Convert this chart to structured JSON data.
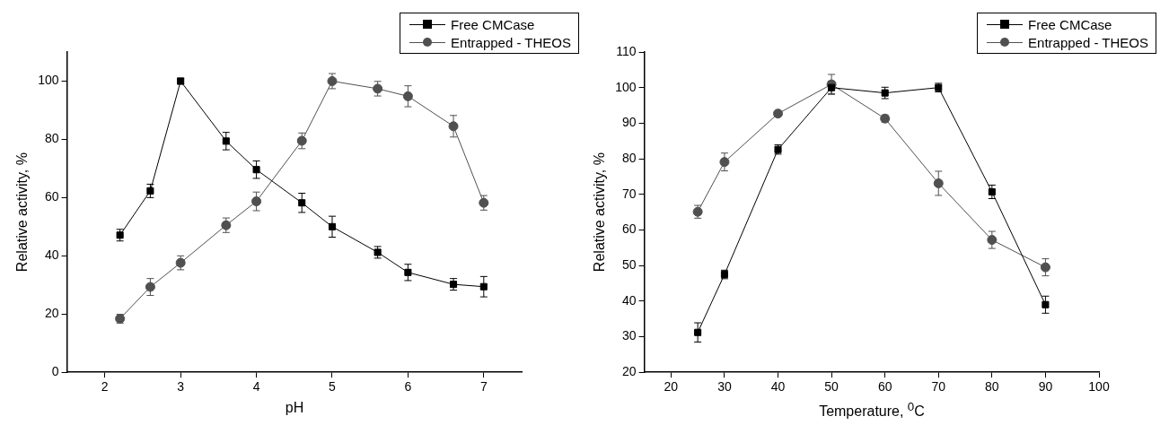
{
  "chart_data": [
    {
      "type": "line",
      "xlabel": "pH",
      "ylabel": "Relative activity, %",
      "x": [
        2.2,
        2.6,
        3,
        3.6,
        4,
        4.6,
        5,
        5.6,
        6,
        6.6,
        7
      ],
      "xlim": [
        1.5,
        7.5
      ],
      "xticks": [
        2,
        3,
        4,
        5,
        6,
        7
      ],
      "ylim": [
        0,
        110
      ],
      "yticks": [
        0,
        20,
        40,
        60,
        80,
        100
      ],
      "grid": false,
      "legend": "top right",
      "series": [
        {
          "name": "Free CMCase",
          "color": "#000000",
          "marker": "square",
          "values": [
            47.1,
            62.3,
            100,
            79.4,
            69.6,
            58.2,
            50,
            41.2,
            34.3,
            30.2,
            29.4
          ],
          "errors": [
            2,
            2.3,
            1,
            3,
            3,
            3.3,
            3.6,
            2,
            2.8,
            2,
            3.5
          ]
        },
        {
          "name": "Entrapped - THEOS",
          "color": "#505050",
          "marker": "circle",
          "values": [
            18.4,
            29.3,
            37.6,
            50.5,
            58.7,
            79.5,
            100,
            97.4,
            94.8,
            84.5,
            58.2
          ],
          "errors": [
            1.5,
            2.9,
            2.4,
            2.5,
            3.2,
            2.7,
            2.6,
            2.5,
            3.6,
            3.7,
            2.5
          ]
        }
      ]
    },
    {
      "type": "line",
      "xlabel": "Temperature, $^{0}$C",
      "ylabel": "Relative activity, %",
      "x": [
        25,
        30,
        40,
        50,
        60,
        70,
        80,
        90
      ],
      "xlim": [
        15,
        100
      ],
      "xticks": [
        20,
        30,
        40,
        50,
        60,
        70,
        80,
        90,
        100
      ],
      "ylim": [
        20,
        110
      ],
      "yticks": [
        20,
        30,
        40,
        50,
        60,
        70,
        80,
        90,
        100,
        110
      ],
      "grid": false,
      "legend": "top right",
      "series": [
        {
          "name": "Free CMCase",
          "color": "#000000",
          "marker": "square",
          "values": [
            31.2,
            47.5,
            82.6,
            100,
            98.5,
            100,
            70.7,
            39
          ],
          "errors": [
            2.7,
            1.2,
            1.3,
            1.8,
            1.6,
            1.2,
            1.9,
            2.4
          ]
        },
        {
          "name": "Entrapped - THEOS",
          "color": "#505050",
          "marker": "circle",
          "values": [
            65.1,
            79.1,
            92.7,
            100.9,
            91.3,
            73.1,
            57.2,
            49.5
          ],
          "errors": [
            1.8,
            2.5,
            0.5,
            2.8,
            1,
            3.4,
            2.4,
            2.4
          ]
        }
      ]
    }
  ]
}
